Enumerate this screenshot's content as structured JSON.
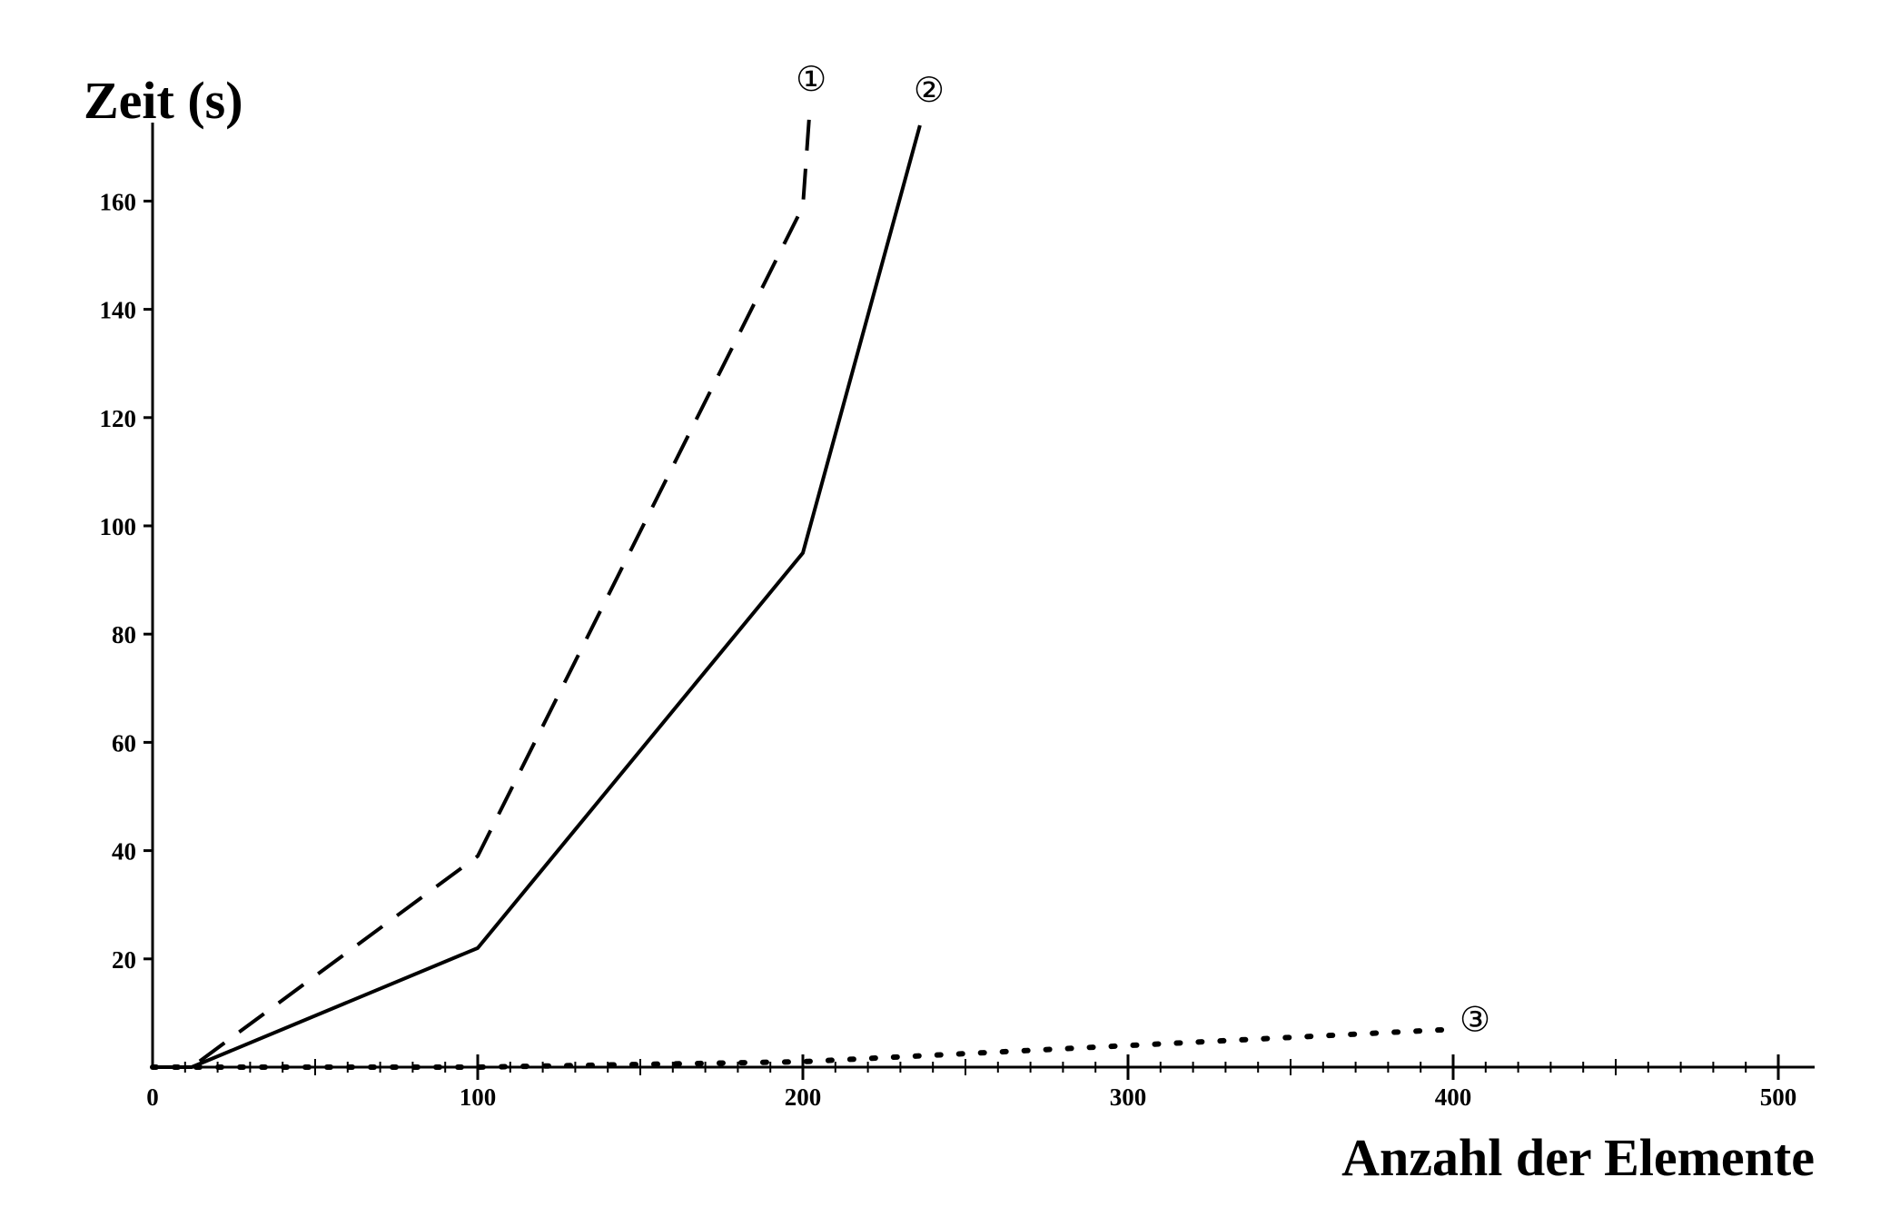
{
  "chart_data": {
    "type": "line",
    "title": "",
    "xlabel": "Anzahl der Elemente",
    "ylabel": "Zeit (s)",
    "xlim": [
      0,
      510
    ],
    "ylim": [
      0,
      172
    ],
    "x_ticks": [
      "0",
      "100",
      "200",
      "300",
      "400",
      "500"
    ],
    "y_ticks": [
      "20",
      "40",
      "60",
      "80",
      "100",
      "120",
      "140",
      "160"
    ],
    "grid": false,
    "legend": "none",
    "series": [
      {
        "name": "①",
        "style": "dashed",
        "color": "#000000",
        "x": [
          0,
          12,
          100,
          200,
          202
        ],
        "y": [
          0,
          0,
          39,
          159,
          176
        ]
      },
      {
        "name": "②",
        "style": "solid",
        "color": "#000000",
        "x": [
          0,
          12,
          100,
          200,
          236
        ],
        "y": [
          0,
          0,
          22,
          95,
          174
        ]
      },
      {
        "name": "③",
        "style": "dotted",
        "color": "#000000",
        "x": [
          0,
          100,
          200,
          300,
          400
        ],
        "y": [
          0,
          0,
          1,
          4,
          7
        ]
      }
    ]
  }
}
